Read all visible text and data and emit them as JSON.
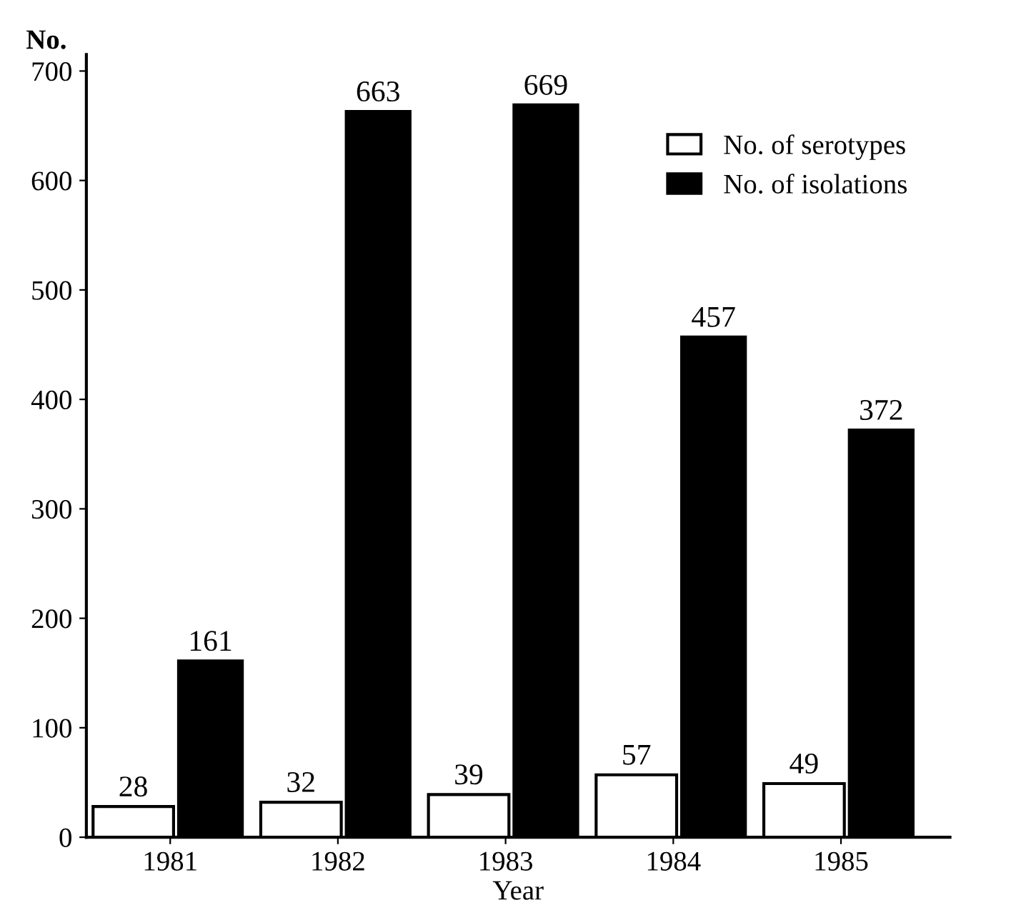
{
  "chart_data": {
    "type": "bar",
    "ylabel": "No.",
    "xlabel": "Year",
    "categories": [
      "1981",
      "1982",
      "1983",
      "1984",
      "1985"
    ],
    "series": [
      {
        "name": "No. of serotypes",
        "color": "#ffffff",
        "values": [
          28,
          32,
          39,
          57,
          49
        ]
      },
      {
        "name": "No. of isolations",
        "color": "#000000",
        "values": [
          161,
          663,
          669,
          457,
          372
        ]
      }
    ],
    "ylim": [
      0,
      715
    ],
    "yticks": [
      0,
      100,
      200,
      300,
      400,
      500,
      600,
      700
    ],
    "data_labels": true,
    "legend": "top right",
    "grid": false
  }
}
